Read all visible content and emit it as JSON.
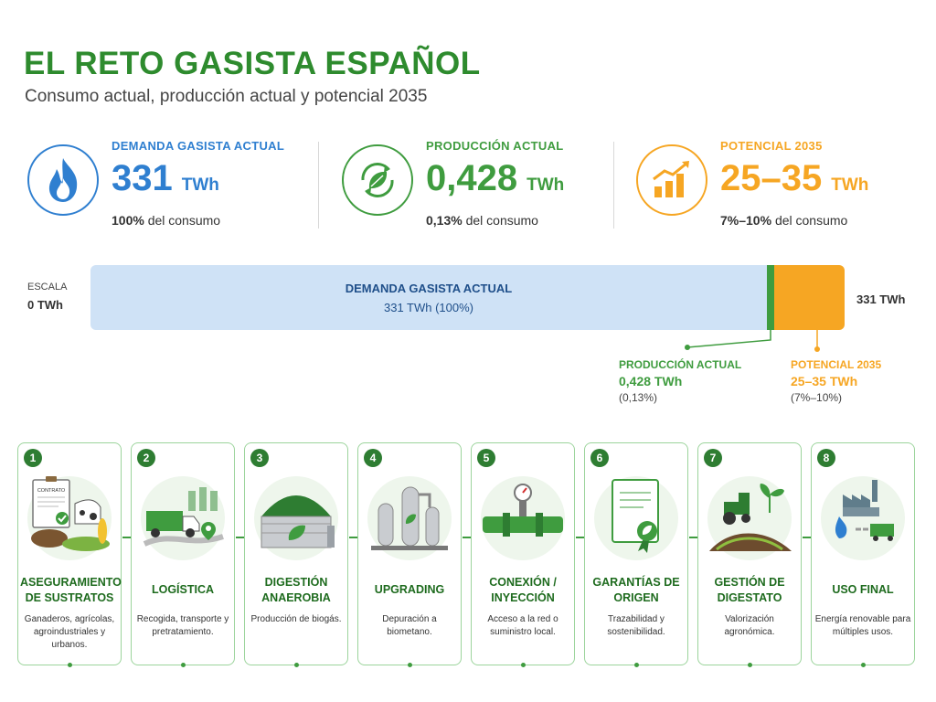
{
  "header": {
    "title": "EL RETO GASISTA ESPAÑOL",
    "subtitle": "Consumo actual, producción actual y potencial 2035"
  },
  "kpis": [
    {
      "label": "DEMANDA GASISTA ACTUAL",
      "value": "331",
      "unit": "TWh",
      "note_bold": "100%",
      "note_rest": "del consumo",
      "color": "#2f7fd0",
      "icon": "flame-icon"
    },
    {
      "label": "PRODUCCIÓN ACTUAL",
      "value": "0,428",
      "unit": "TWh",
      "note_bold": "0,13%",
      "note_rest": "del consumo",
      "color": "#3f9c3f",
      "icon": "leaf-recycle-icon"
    },
    {
      "label": "POTENCIAL 2035",
      "value": "25–35",
      "unit": "TWh",
      "note_bold": "7%–10%",
      "note_rest": "del consumo",
      "color": "#f6a623",
      "icon": "growth-chart-icon"
    }
  ],
  "scale": {
    "label": "ESCALA",
    "zero": "0 TWh",
    "end": "331 TWh",
    "bar_title": "DEMANDA GASISTA ACTUAL",
    "bar_sub": "331 TWh (100%)"
  },
  "callouts": {
    "production": {
      "title": "PRODUCCIÓN ACTUAL",
      "value": "0,428 TWh",
      "pct": "(0,13%)"
    },
    "potential": {
      "title": "POTENCIAL 2035",
      "value": "25–35 TWh",
      "pct": "(7%–10%)"
    }
  },
  "steps": [
    {
      "num": "1",
      "title": "ASEGURAMIENTO DE SUSTRATOS",
      "desc": "Ganaderos, agrícolas, agroindustriales y urbanos.",
      "contract": "CONTRATO"
    },
    {
      "num": "2",
      "title": "LOGÍSTICA",
      "desc": "Recogida, transporte y pretratamiento."
    },
    {
      "num": "3",
      "title": "DIGESTIÓN ANAEROBIA",
      "desc": "Producción de biogás."
    },
    {
      "num": "4",
      "title": "UPGRADING",
      "desc": "Depuración a biometano."
    },
    {
      "num": "5",
      "title": "CONEXIÓN / INYECCIÓN",
      "desc": "Acceso a la red o suministro local."
    },
    {
      "num": "6",
      "title": "GARANTÍAS DE ORIGEN",
      "desc": "Trazabilidad y sostenibilidad."
    },
    {
      "num": "7",
      "title": "GESTIÓN DE DIGESTATO",
      "desc": "Valorización agronómica."
    },
    {
      "num": "8",
      "title": "USO FINAL",
      "desc": "Energía renovable para múltiples usos."
    }
  ]
}
